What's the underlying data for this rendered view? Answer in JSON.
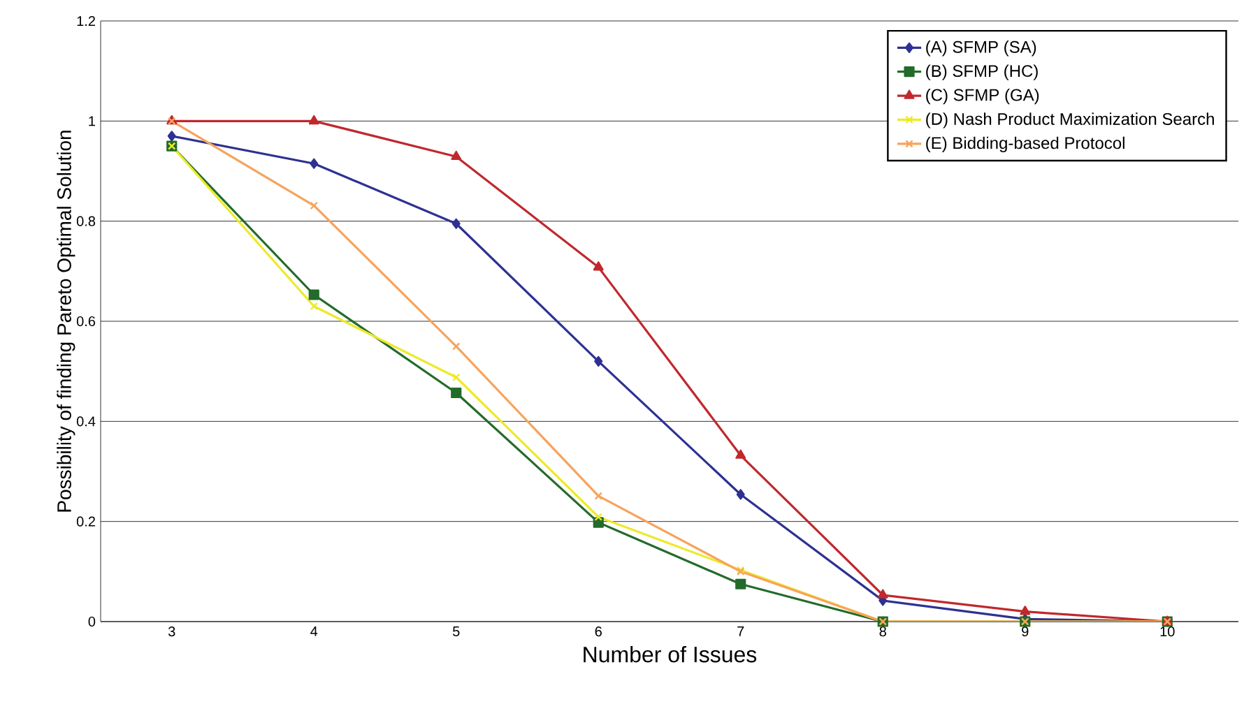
{
  "chart_data": {
    "type": "line",
    "xlabel": "Number of Issues",
    "ylabel": "Possibility of finding Pareto Optimal Solution",
    "categories": [
      "3",
      "4",
      "5",
      "6",
      "7",
      "8",
      "9",
      "10"
    ],
    "series": [
      {
        "name": "(A) SFMP (SA)",
        "color": "#2e3192",
        "marker": "diamond",
        "values": [
          0.97,
          0.915,
          0.795,
          0.52,
          0.254,
          0.042,
          0.005,
          0
        ]
      },
      {
        "name": "(B) SFMP (HC)",
        "color": "#236b2a",
        "marker": "square",
        "values": [
          0.95,
          0.653,
          0.457,
          0.198,
          0.075,
          0,
          0,
          0
        ]
      },
      {
        "name": "(C) SFMP (GA)",
        "color": "#c0282d",
        "marker": "triangle",
        "values": [
          1.0,
          1.0,
          0.929,
          0.708,
          0.332,
          0.053,
          0.02,
          0
        ]
      },
      {
        "name": "(D) Nash Product Maximization Search",
        "color": "#ecea2a",
        "marker": "cross",
        "values": [
          0.95,
          0.63,
          0.488,
          0.209,
          0.103,
          0,
          0,
          0
        ]
      },
      {
        "name": "(E) Bidding-based Protocol",
        "color": "#f7a35c",
        "marker": "cross",
        "values": [
          1.0,
          0.831,
          0.55,
          0.251,
          0.1,
          0,
          0,
          0
        ]
      }
    ],
    "ylim": [
      0,
      1.2
    ],
    "yticks": [
      0,
      0.2,
      0.4,
      0.6,
      0.8,
      1,
      1.2
    ],
    "grid": "y",
    "legend": "top right"
  }
}
